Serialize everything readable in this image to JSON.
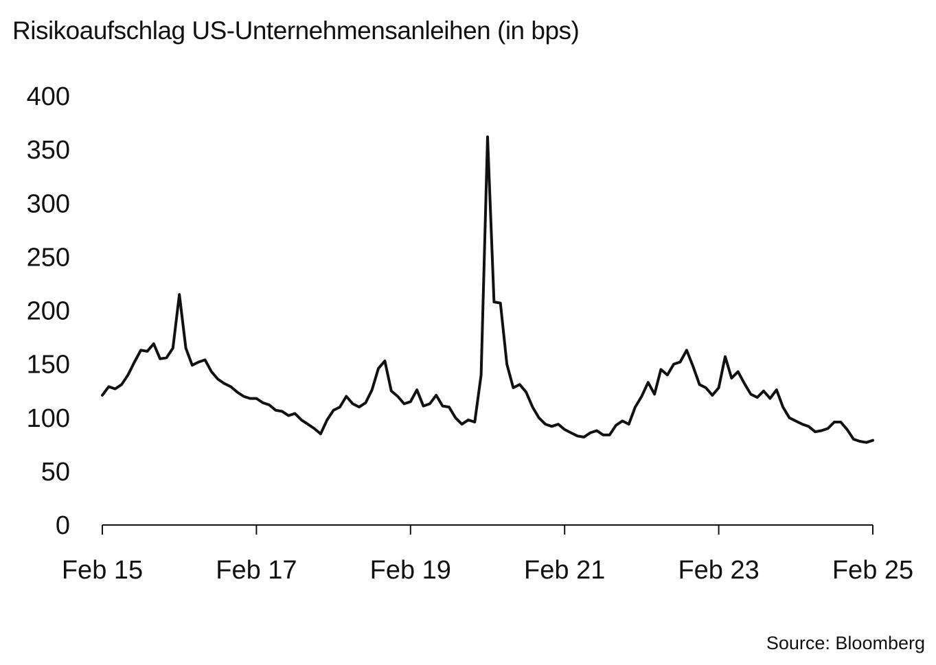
{
  "chart_data": {
    "type": "line",
    "title": "Risikoaufschlag US-Unternehmensanleihen (in bps)",
    "xlabel": "",
    "ylabel": "",
    "ylim": [
      0,
      400
    ],
    "yticks": [
      0,
      50,
      100,
      150,
      200,
      250,
      300,
      350,
      400
    ],
    "xticks": [
      "Feb 15",
      "Feb 17",
      "Feb 19",
      "Feb 21",
      "Feb 23",
      "Feb 25"
    ],
    "xlim": [
      "2015-02",
      "2025-02"
    ],
    "grid": false,
    "source": "Source: Bloomberg",
    "line_color": "#111111",
    "series": [
      {
        "x": [
          "2015-02",
          "2015-03",
          "2015-04",
          "2015-05",
          "2015-06",
          "2015-07",
          "2015-08",
          "2015-09",
          "2015-10",
          "2015-11",
          "2015-12",
          "2016-01",
          "2016-02",
          "2016-03",
          "2016-04",
          "2016-05",
          "2016-06",
          "2016-07",
          "2016-08",
          "2016-09",
          "2016-10",
          "2016-11",
          "2016-12",
          "2017-01",
          "2017-02",
          "2017-03",
          "2017-04",
          "2017-05",
          "2017-06",
          "2017-07",
          "2017-08",
          "2017-09",
          "2017-10",
          "2017-11",
          "2017-12",
          "2018-01",
          "2018-02",
          "2018-03",
          "2018-04",
          "2018-05",
          "2018-06",
          "2018-07",
          "2018-08",
          "2018-09",
          "2018-10",
          "2018-11",
          "2018-12",
          "2019-01",
          "2019-02",
          "2019-03",
          "2019-04",
          "2019-05",
          "2019-06",
          "2019-07",
          "2019-08",
          "2019-09",
          "2019-10",
          "2019-11",
          "2019-12",
          "2020-01",
          "2020-02",
          "2020-03",
          "2020-04",
          "2020-05",
          "2020-06",
          "2020-07",
          "2020-08",
          "2020-09",
          "2020-10",
          "2020-11",
          "2020-12",
          "2021-01",
          "2021-02",
          "2021-03",
          "2021-04",
          "2021-05",
          "2021-06",
          "2021-07",
          "2021-08",
          "2021-09",
          "2021-10",
          "2021-11",
          "2021-12",
          "2022-01",
          "2022-02",
          "2022-03",
          "2022-04",
          "2022-05",
          "2022-06",
          "2022-07",
          "2022-08",
          "2022-09",
          "2022-10",
          "2022-11",
          "2022-12",
          "2023-01",
          "2023-02",
          "2023-03",
          "2023-04",
          "2023-05",
          "2023-06",
          "2023-07",
          "2023-08",
          "2023-09",
          "2023-10",
          "2023-11",
          "2023-12",
          "2024-01",
          "2024-02",
          "2024-03",
          "2024-04",
          "2024-05",
          "2024-06",
          "2024-07",
          "2024-08",
          "2024-09",
          "2024-10",
          "2024-11",
          "2024-12",
          "2025-01",
          "2025-02"
        ],
        "values": [
          121,
          129,
          127,
          131,
          140,
          152,
          163,
          162,
          169,
          155,
          156,
          165,
          215,
          165,
          149,
          152,
          154,
          143,
          136,
          132,
          129,
          124,
          120,
          118,
          118,
          114,
          112,
          107,
          106,
          102,
          104,
          98,
          94,
          90,
          85,
          98,
          107,
          110,
          120,
          113,
          110,
          114,
          126,
          146,
          153,
          125,
          120,
          113,
          115,
          126,
          111,
          113,
          121,
          111,
          110,
          100,
          94,
          98,
          96,
          140,
          362,
          208,
          207,
          150,
          128,
          131,
          124,
          110,
          100,
          94,
          92,
          94,
          89,
          86,
          83,
          82,
          86,
          88,
          84,
          84,
          93,
          97,
          94,
          110,
          120,
          133,
          122,
          145,
          140,
          150,
          152,
          163,
          148,
          131,
          128,
          121,
          128,
          157,
          137,
          143,
          132,
          122,
          119,
          125,
          118,
          126,
          110,
          100,
          97,
          94,
          92,
          87,
          88,
          90,
          96,
          96,
          89,
          80,
          78,
          77,
          79
        ]
      }
    ]
  }
}
